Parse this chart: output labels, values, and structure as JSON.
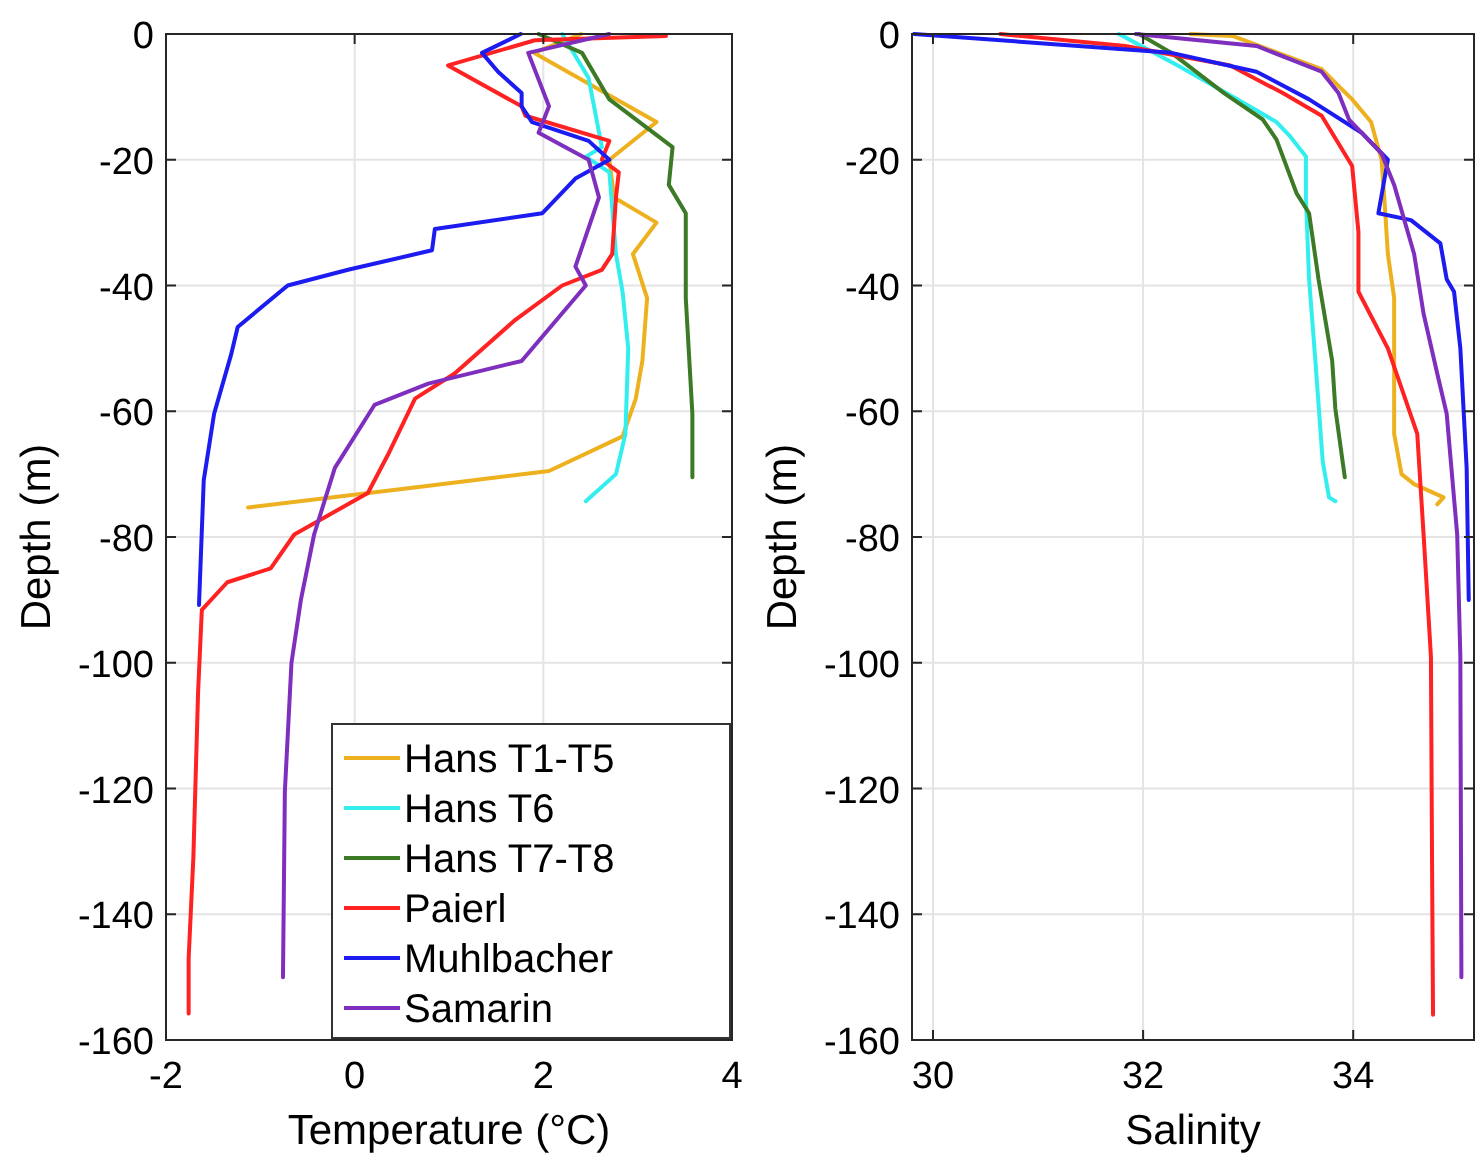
{
  "chart_data": [
    {
      "type": "line",
      "xlabel": "Temperature (°C)",
      "ylabel": "Depth (m)",
      "xlim": [
        -2,
        4
      ],
      "ylim": [
        -160,
        0
      ],
      "xticks": [
        -2,
        0,
        2,
        4
      ],
      "yticks": [
        -160,
        -140,
        -120,
        -100,
        -80,
        -60,
        -40,
        -20,
        0
      ],
      "grid": true,
      "legend": "bottom right",
      "series": [
        {
          "name": "Hans T1-T5",
          "color": "#edb120",
          "x": [
            2.4,
            1.9,
            3.2,
            2.7,
            2.75,
            3.2,
            2.95,
            3.1,
            3.05,
            2.98,
            2.84,
            2.06,
            0.7,
            -1.13
          ],
          "values": [
            0,
            -3,
            -14,
            -20,
            -26,
            -30,
            -35,
            -42,
            -52,
            -58,
            -64,
            -69.5,
            -72,
            -75.3
          ]
        },
        {
          "name": "Hans T6",
          "color": "#33eeee",
          "x": [
            2.2,
            2.48,
            2.62,
            2.45,
            2.7,
            2.77,
            2.84,
            2.9,
            2.87,
            2.77,
            2.45
          ],
          "values": [
            0,
            -7,
            -18,
            -19.5,
            -22,
            -35,
            -41,
            -50,
            -63.6,
            -70,
            -74.3
          ]
        },
        {
          "name": "Hans T7-T8",
          "color": "#3c7a26",
          "x": [
            1.95,
            2.41,
            2.7,
            3.37,
            3.33,
            3.51,
            3.51,
            3.58,
            3.58
          ],
          "values": [
            0,
            -3,
            -10.4,
            -18,
            -24,
            -28.5,
            -42,
            -60.4,
            -70.5
          ]
        },
        {
          "name": "Paierl",
          "color": "#ff2222",
          "x": [
            3.3,
            1.91,
            0.99,
            1.77,
            1.81,
            2.7,
            2.62,
            2.8,
            2.77,
            2.73,
            2.62,
            2.2,
            1.7,
            1.06,
            0.64,
            0.35,
            0.14,
            -0.64,
            -0.89,
            -1.35,
            -1.62,
            -1.66,
            -1.71,
            -1.76,
            -1.76
          ],
          "values": [
            -0.3,
            -1,
            -5,
            -11.5,
            -13,
            -17,
            -20,
            -22,
            -26,
            -35,
            -37.5,
            -40,
            -45.5,
            -54,
            -58,
            -67,
            -73,
            -79.6,
            -85,
            -87.2,
            -91.6,
            -104.7,
            -131,
            -147,
            -155.8
          ]
        },
        {
          "name": "Muhlbacher",
          "color": "#1c1cf0",
          "x": [
            1.76,
            1.35,
            1.52,
            1.77,
            1.77,
            1.88,
            2.48,
            2.7,
            2.34,
            1.99,
            0.85,
            0.82,
            -0.07,
            -0.71,
            -1.24,
            -1.31,
            -1.49,
            -1.6,
            -1.65
          ],
          "values": [
            0,
            -3,
            -6,
            -9.4,
            -11.5,
            -14,
            -17,
            -20,
            -23,
            -28.5,
            -31,
            -34.4,
            -37.5,
            -40,
            -46.6,
            -51,
            -60.4,
            -71,
            -90.8
          ]
        },
        {
          "name": "Samarin",
          "color": "#7e2fbe",
          "x": [
            2.7,
            1.84,
            2.06,
            1.95,
            2.48,
            2.59,
            2.34,
            2.45,
            1.77,
            0.78,
            0.21,
            -0.21,
            -0.43,
            -0.57,
            -0.67,
            -0.74,
            -0.76
          ],
          "values": [
            0,
            -3,
            -11.5,
            -15.7,
            -20,
            -26,
            -37,
            -40,
            -52,
            -55.6,
            -59,
            -69,
            -79.6,
            -90,
            -100,
            -120.5,
            -150
          ]
        }
      ]
    },
    {
      "type": "line",
      "xlabel": "Salinity",
      "ylabel": "Depth (m)",
      "xlim": [
        29.8,
        35.15
      ],
      "ylim": [
        -160,
        0
      ],
      "xticks": [
        30,
        32,
        34
      ],
      "yticks": [
        -160,
        -140,
        -120,
        -100,
        -80,
        -60,
        -40,
        -20,
        0
      ],
      "grid": true,
      "series": [
        {
          "color": "#edb120",
          "x": [
            32.45,
            32.85,
            33.7,
            33.99,
            34.17,
            34.27,
            34.3,
            34.33,
            34.39,
            34.39,
            34.46,
            34.58,
            34.86,
            34.8
          ],
          "values": [
            0,
            -0.3,
            -5.6,
            -10.4,
            -14,
            -20,
            -27,
            -35,
            -42,
            -63.6,
            -70,
            -71.6,
            -73.7,
            -74.8
          ]
        },
        {
          "color": "#33eeee",
          "x": [
            31.77,
            32.33,
            32.9,
            33.27,
            33.4,
            33.55,
            33.55,
            33.58,
            33.64,
            33.71,
            33.77,
            33.83
          ],
          "values": [
            0,
            -5,
            -10.4,
            -14,
            -16.3,
            -19.5,
            -26,
            -39,
            -52,
            -68,
            -73.7,
            -74.3
          ]
        },
        {
          "color": "#3c7a26",
          "x": [
            31.96,
            32.27,
            32.77,
            33.14,
            33.27,
            33.46,
            33.58,
            33.67,
            33.8,
            33.83,
            33.92
          ],
          "values": [
            0,
            -3,
            -9.4,
            -13.6,
            -16.8,
            -25.3,
            -28.5,
            -39,
            -52,
            -59.6,
            -70.5
          ]
        },
        {
          "color": "#ff2222",
          "x": [
            30.64,
            31.83,
            32.83,
            33.33,
            33.7,
            33.99,
            34.05,
            34.05,
            34.33,
            34.61,
            34.67,
            34.74,
            34.75,
            34.76
          ],
          "values": [
            0,
            -1.9,
            -5,
            -9.4,
            -13,
            -21,
            -31.5,
            -41,
            -50,
            -63.6,
            -79.6,
            -99,
            -130,
            -156
          ]
        },
        {
          "color": "#1c1cf0",
          "x": [
            29.82,
            32.27,
            33.08,
            33.58,
            34.08,
            34.33,
            34.24,
            34.55,
            34.83,
            34.89,
            34.96,
            35.02,
            35.08,
            35.1
          ],
          "values": [
            0,
            -3,
            -6,
            -10.4,
            -15.7,
            -20,
            -28.5,
            -29.6,
            -33.3,
            -39,
            -41,
            -50,
            -69,
            -90
          ]
        },
        {
          "color": "#7e2fbe",
          "x": [
            31.93,
            33.08,
            33.7,
            33.86,
            33.96,
            34.27,
            34.39,
            34.58,
            34.67,
            34.8,
            34.89,
            34.99,
            35.02,
            35.03
          ],
          "values": [
            0,
            -1.9,
            -6,
            -9.4,
            -13.6,
            -19,
            -24,
            -35,
            -44.5,
            -54,
            -60.4,
            -79.6,
            -99,
            -150
          ]
        }
      ]
    }
  ]
}
